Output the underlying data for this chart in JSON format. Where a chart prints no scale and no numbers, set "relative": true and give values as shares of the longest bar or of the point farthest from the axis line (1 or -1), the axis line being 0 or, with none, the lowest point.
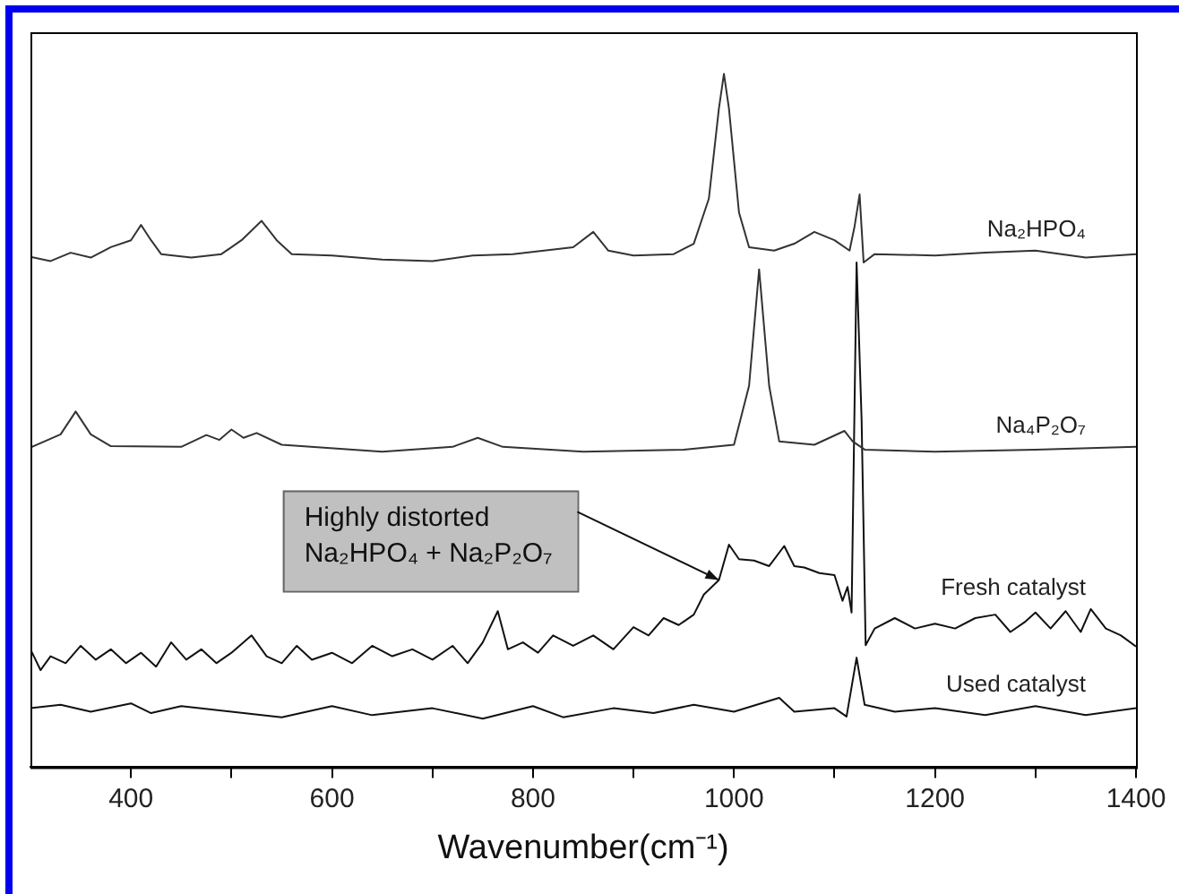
{
  "chart_data": {
    "type": "line",
    "relative": true,
    "xlabel": "Wavenumber(cm⁻¹)",
    "xlim": [
      300,
      1400
    ],
    "xticks": [
      400,
      {
        "value": 500,
        "label": null
      },
      600,
      {
        "value": 700,
        "label": null
      },
      800,
      {
        "value": 900,
        "label": null
      },
      1000,
      {
        "value": 1100,
        "label": null
      },
      1200,
      {
        "value": 1300,
        "label": null
      },
      1400
    ],
    "grid": false,
    "legend": false,
    "marker": "none",
    "line_style": "solid",
    "annotations": [
      {
        "text": "Highly distorted\nNa₂HPO₄ + Na₂P₂O₇",
        "x": 985,
        "y": 0.27
      }
    ],
    "series": [
      {
        "name": "Na₂HPO₄",
        "color": "#333333",
        "x": [
          300,
          320,
          340,
          360,
          380,
          400,
          410,
          420,
          430,
          460,
          490,
          510,
          530,
          545,
          560,
          600,
          650,
          700,
          740,
          780,
          840,
          860,
          875,
          900,
          940,
          960,
          975,
          985,
          990,
          995,
          1005,
          1015,
          1040,
          1060,
          1080,
          1100,
          1115,
          1120,
          1125,
          1129,
          1140,
          1200,
          1250,
          1300,
          1350,
          1400
        ],
        "values": [
          0.736,
          0.73,
          0.742,
          0.735,
          0.75,
          0.76,
          0.782,
          0.76,
          0.74,
          0.735,
          0.74,
          0.76,
          0.788,
          0.76,
          0.74,
          0.738,
          0.732,
          0.73,
          0.738,
          0.74,
          0.75,
          0.772,
          0.745,
          0.738,
          0.74,
          0.755,
          0.82,
          0.95,
          1.0,
          0.95,
          0.8,
          0.75,
          0.745,
          0.755,
          0.772,
          0.76,
          0.745,
          0.78,
          0.826,
          0.728,
          0.74,
          0.738,
          0.742,
          0.745,
          0.735,
          0.74
        ]
      },
      {
        "name": "Na₄P₂O₇",
        "color": "#333333",
        "x": [
          300,
          330,
          345,
          360,
          380,
          450,
          475,
          488,
          500,
          512,
          525,
          550,
          650,
          720,
          745,
          770,
          850,
          950,
          1000,
          1015,
          1025,
          1035,
          1045,
          1080,
          1110,
          1118,
          1130,
          1200,
          1300,
          1400
        ],
        "values": [
          0.461,
          0.48,
          0.513,
          0.48,
          0.463,
          0.462,
          0.479,
          0.472,
          0.487,
          0.475,
          0.482,
          0.465,
          0.455,
          0.462,
          0.475,
          0.462,
          0.455,
          0.458,
          0.465,
          0.55,
          0.718,
          0.55,
          0.47,
          0.465,
          0.485,
          0.47,
          0.458,
          0.455,
          0.458,
          0.462
        ]
      },
      {
        "name": "Fresh catalyst",
        "color": "#111111",
        "x": [
          300,
          310,
          320,
          335,
          350,
          365,
          380,
          395,
          410,
          425,
          440,
          455,
          470,
          485,
          500,
          520,
          535,
          550,
          565,
          580,
          600,
          620,
          640,
          660,
          680,
          700,
          720,
          735,
          750,
          765,
          775,
          790,
          805,
          820,
          840,
          860,
          880,
          900,
          915,
          930,
          945,
          960,
          970,
          985,
          995,
          1005,
          1020,
          1035,
          1050,
          1060,
          1070,
          1085,
          1100,
          1108,
          1113,
          1117,
          1122,
          1127,
          1131,
          1140,
          1160,
          1180,
          1200,
          1220,
          1240,
          1260,
          1275,
          1290,
          1300,
          1315,
          1330,
          1345,
          1355,
          1370,
          1385,
          1400
        ],
        "values": [
          0.17,
          0.14,
          0.16,
          0.15,
          0.175,
          0.155,
          0.17,
          0.15,
          0.165,
          0.145,
          0.18,
          0.155,
          0.17,
          0.15,
          0.165,
          0.19,
          0.16,
          0.15,
          0.175,
          0.155,
          0.165,
          0.15,
          0.175,
          0.16,
          0.17,
          0.155,
          0.175,
          0.15,
          0.18,
          0.225,
          0.17,
          0.18,
          0.165,
          0.19,
          0.175,
          0.19,
          0.17,
          0.202,
          0.19,
          0.215,
          0.205,
          0.22,
          0.249,
          0.27,
          0.321,
          0.3,
          0.298,
          0.29,
          0.319,
          0.29,
          0.288,
          0.28,
          0.277,
          0.24,
          0.26,
          0.223,
          0.728,
          0.5,
          0.176,
          0.2,
          0.215,
          0.2,
          0.207,
          0.2,
          0.215,
          0.22,
          0.195,
          0.21,
          0.223,
          0.2,
          0.225,
          0.195,
          0.228,
          0.2,
          0.19,
          0.174
        ]
      },
      {
        "name": "Used catalyst",
        "color": "#111111",
        "x": [
          300,
          330,
          360,
          400,
          420,
          450,
          500,
          550,
          600,
          640,
          700,
          750,
          800,
          830,
          880,
          920,
          960,
          1000,
          1045,
          1060,
          1100,
          1112,
          1122,
          1130,
          1160,
          1200,
          1250,
          1300,
          1350,
          1400
        ],
        "values": [
          0.085,
          0.09,
          0.08,
          0.092,
          0.078,
          0.088,
          0.08,
          0.072,
          0.088,
          0.075,
          0.085,
          0.07,
          0.088,
          0.072,
          0.085,
          0.078,
          0.09,
          0.08,
          0.1,
          0.08,
          0.085,
          0.073,
          0.158,
          0.09,
          0.08,
          0.085,
          0.075,
          0.088,
          0.075,
          0.085
        ]
      }
    ]
  }
}
